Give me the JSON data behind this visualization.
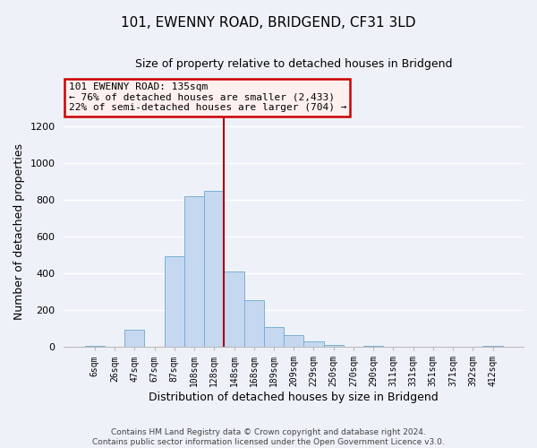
{
  "title": "101, EWENNY ROAD, BRIDGEND, CF31 3LD",
  "subtitle": "Size of property relative to detached houses in Bridgend",
  "xlabel": "Distribution of detached houses by size in Bridgend",
  "ylabel": "Number of detached properties",
  "bar_labels": [
    "6sqm",
    "26sqm",
    "47sqm",
    "67sqm",
    "87sqm",
    "108sqm",
    "128sqm",
    "148sqm",
    "168sqm",
    "189sqm",
    "209sqm",
    "229sqm",
    "250sqm",
    "270sqm",
    "290sqm",
    "311sqm",
    "331sqm",
    "351sqm",
    "371sqm",
    "392sqm",
    "412sqm"
  ],
  "bar_values": [
    4,
    0,
    95,
    0,
    495,
    820,
    850,
    408,
    255,
    110,
    65,
    30,
    12,
    0,
    8,
    0,
    0,
    0,
    0,
    0,
    5
  ],
  "bar_color": "#c5d8f0",
  "bar_edgecolor": "#7aafd4",
  "vline_color": "#aa0000",
  "ylim": [
    0,
    1250
  ],
  "yticks": [
    0,
    200,
    400,
    600,
    800,
    1000,
    1200
  ],
  "annotation_line1": "101 EWENNY ROAD: 135sqm",
  "annotation_line2": "← 76% of detached houses are smaller (2,433)",
  "annotation_line3": "22% of semi-detached houses are larger (704) →",
  "annotation_box_facecolor": "#fff0f0",
  "annotation_box_edgecolor": "#cc0000",
  "footer_line1": "Contains HM Land Registry data © Crown copyright and database right 2024.",
  "footer_line2": "Contains public sector information licensed under the Open Government Licence v3.0.",
  "background_color": "#eef2f8",
  "grid_color": "#ffffff"
}
